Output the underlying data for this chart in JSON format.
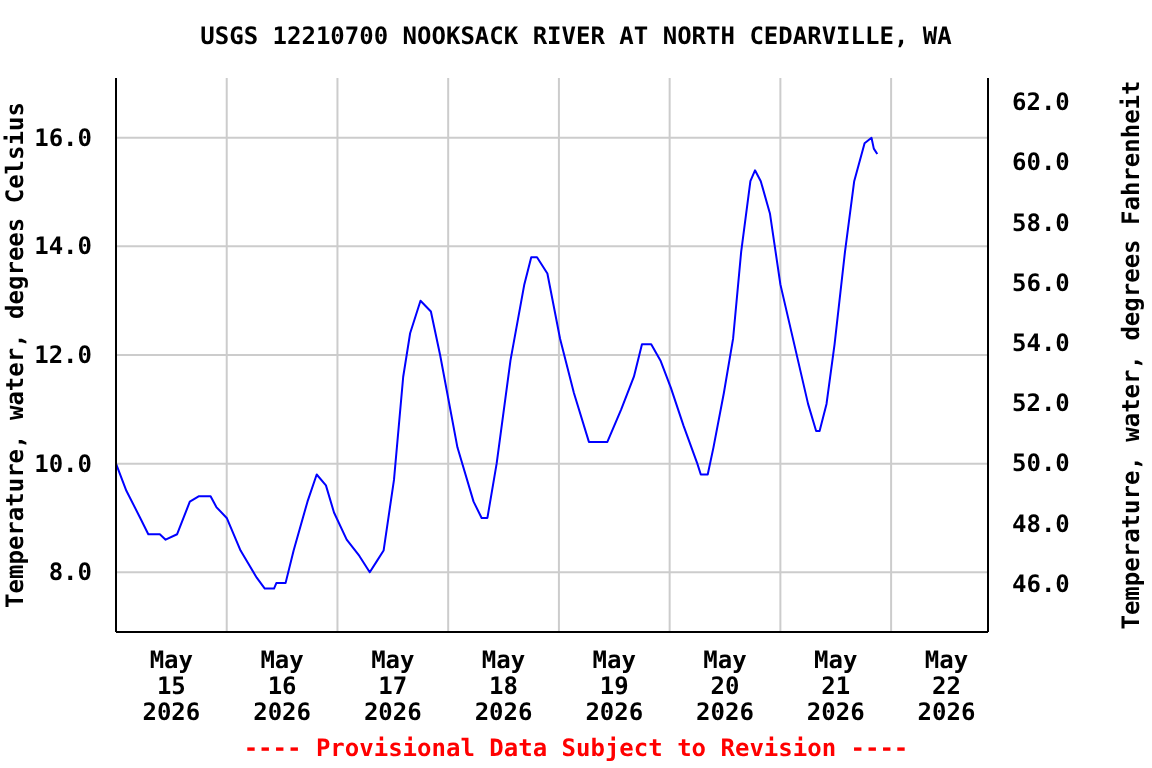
{
  "chart_data": {
    "type": "line",
    "title": "USGS 12210700 NOOKSACK RIVER AT NORTH CEDARVILLE, WA",
    "ylabel": "Temperature, water, degrees Celsius",
    "y2label": "Temperature, water, degrees Fahrenheit",
    "annotations": [
      "---- Provisional Data Subject to Revision ----"
    ],
    "x": [
      "2026-05-15T00:00",
      "2026-05-15T02:15",
      "2026-05-15T05:15",
      "2026-05-15T07:00",
      "2026-05-15T09:30",
      "2026-05-15T10:45",
      "2026-05-15T13:15",
      "2026-05-15T16:00",
      "2026-05-15T18:00",
      "2026-05-15T20:30",
      "2026-05-15T21:45",
      "2026-05-16T00:00",
      "2026-05-16T03:00",
      "2026-05-16T06:30",
      "2026-05-16T08:15",
      "2026-05-16T10:15",
      "2026-05-16T10:45",
      "2026-05-16T12:45",
      "2026-05-16T14:30",
      "2026-05-16T17:30",
      "2026-05-16T19:30",
      "2026-05-16T21:30",
      "2026-05-16T23:15",
      "2026-05-17T02:00",
      "2026-05-17T04:45",
      "2026-05-17T07:00",
      "2026-05-17T08:30",
      "2026-05-17T10:00",
      "2026-05-17T12:15",
      "2026-05-17T14:15",
      "2026-05-17T15:45",
      "2026-05-17T18:00",
      "2026-05-17T20:15",
      "2026-05-17T22:15",
      "2026-05-18T02:00",
      "2026-05-18T05:30",
      "2026-05-18T07:15",
      "2026-05-18T08:30",
      "2026-05-18T10:30",
      "2026-05-18T13:30",
      "2026-05-18T16:30",
      "2026-05-18T18:00",
      "2026-05-18T19:15",
      "2026-05-18T21:30",
      "2026-05-19T00:15",
      "2026-05-19T03:15",
      "2026-05-19T06:30",
      "2026-05-19T10:30",
      "2026-05-19T13:30",
      "2026-05-19T16:15",
      "2026-05-19T18:00",
      "2026-05-19T20:00",
      "2026-05-19T22:00",
      "2026-05-20T00:15",
      "2026-05-20T03:00",
      "2026-05-20T06:00",
      "2026-05-20T06:45",
      "2026-05-20T08:15",
      "2026-05-20T09:30",
      "2026-05-20T11:45",
      "2026-05-20T13:45",
      "2026-05-20T15:30",
      "2026-05-20T17:30",
      "2026-05-20T18:30",
      "2026-05-20T19:45",
      "2026-05-20T21:45",
      "2026-05-21T00:00",
      "2026-05-21T03:00",
      "2026-05-21T06:00",
      "2026-05-21T07:45",
      "2026-05-21T08:30",
      "2026-05-21T10:00",
      "2026-05-21T11:45",
      "2026-05-21T14:00",
      "2026-05-21T16:00",
      "2026-05-21T18:15",
      "2026-05-21T19:45",
      "2026-05-21T20:15",
      "2026-05-21T21:00"
    ],
    "series": [
      {
        "color": "#0000ff",
        "values": [
          10.0,
          9.5,
          9.0,
          8.7,
          8.7,
          8.6,
          8.7,
          9.3,
          9.4,
          9.4,
          9.2,
          9.0,
          8.4,
          7.9,
          7.7,
          7.7,
          7.8,
          7.8,
          8.4,
          9.3,
          9.8,
          9.6,
          9.1,
          8.6,
          8.3,
          8.0,
          8.2,
          8.4,
          9.7,
          11.6,
          12.4,
          13.0,
          12.8,
          12.0,
          10.3,
          9.3,
          9.0,
          9.0,
          10.0,
          11.9,
          13.3,
          13.8,
          13.8,
          13.5,
          12.3,
          11.3,
          10.4,
          10.4,
          11.0,
          11.6,
          12.2,
          12.2,
          11.9,
          11.4,
          10.7,
          10.0,
          9.8,
          9.8,
          10.3,
          11.3,
          12.3,
          13.9,
          15.2,
          15.4,
          15.2,
          14.6,
          13.3,
          12.2,
          11.1,
          10.6,
          10.6,
          11.1,
          12.2,
          13.9,
          15.2,
          15.9,
          16.0,
          15.8,
          15.7
        ]
      }
    ],
    "xlim": [
      "2026-05-15T00:00",
      "2026-05-22T21:00"
    ],
    "xticks": [
      {
        "value": "2026-05-15T12:00",
        "label": "May 15 2026"
      },
      {
        "value": "2026-05-16T00:00",
        "label": null
      },
      {
        "value": "2026-05-16T12:00",
        "label": "May 16 2026"
      },
      {
        "value": "2026-05-17T00:00",
        "label": null
      },
      {
        "value": "2026-05-17T12:00",
        "label": "May 17 2026"
      },
      {
        "value": "2026-05-18T00:00",
        "label": null
      },
      {
        "value": "2026-05-18T12:00",
        "label": "May 18 2026"
      },
      {
        "value": "2026-05-19T00:00",
        "label": null
      },
      {
        "value": "2026-05-19T12:00",
        "label": "May 19 2026"
      },
      {
        "value": "2026-05-20T00:00",
        "label": null
      },
      {
        "value": "2026-05-20T12:00",
        "label": "May 20 2026"
      },
      {
        "value": "2026-05-21T00:00",
        "label": null
      },
      {
        "value": "2026-05-21T12:00",
        "label": "May 21 2026"
      },
      {
        "value": "2026-05-22T00:00",
        "label": null
      },
      {
        "value": "2026-05-22T12:00",
        "label": "May 22 2026"
      }
    ],
    "ylim": [
      6.9,
      17.1
    ],
    "yticks": [
      {
        "value": 8,
        "label": "8.0"
      },
      {
        "value": 10,
        "label": "10.0"
      },
      {
        "value": 12,
        "label": "12.0"
      },
      {
        "value": 14,
        "label": "14.0"
      },
      {
        "value": 16,
        "label": "16.0"
      }
    ],
    "y2lim": [
      44.4,
      62.8
    ],
    "y2ticks": [
      {
        "value": 46,
        "label": "46.0"
      },
      {
        "value": 48,
        "label": "48.0"
      },
      {
        "value": 50,
        "label": "50.0"
      },
      {
        "value": 52,
        "label": "52.0"
      },
      {
        "value": 54,
        "label": "54.0"
      },
      {
        "value": 56,
        "label": "56.0"
      },
      {
        "value": 58,
        "label": "58.0"
      },
      {
        "value": 60,
        "label": "60.0"
      },
      {
        "value": 62,
        "label": "62.0"
      }
    ],
    "grid": true,
    "marker": "none"
  }
}
